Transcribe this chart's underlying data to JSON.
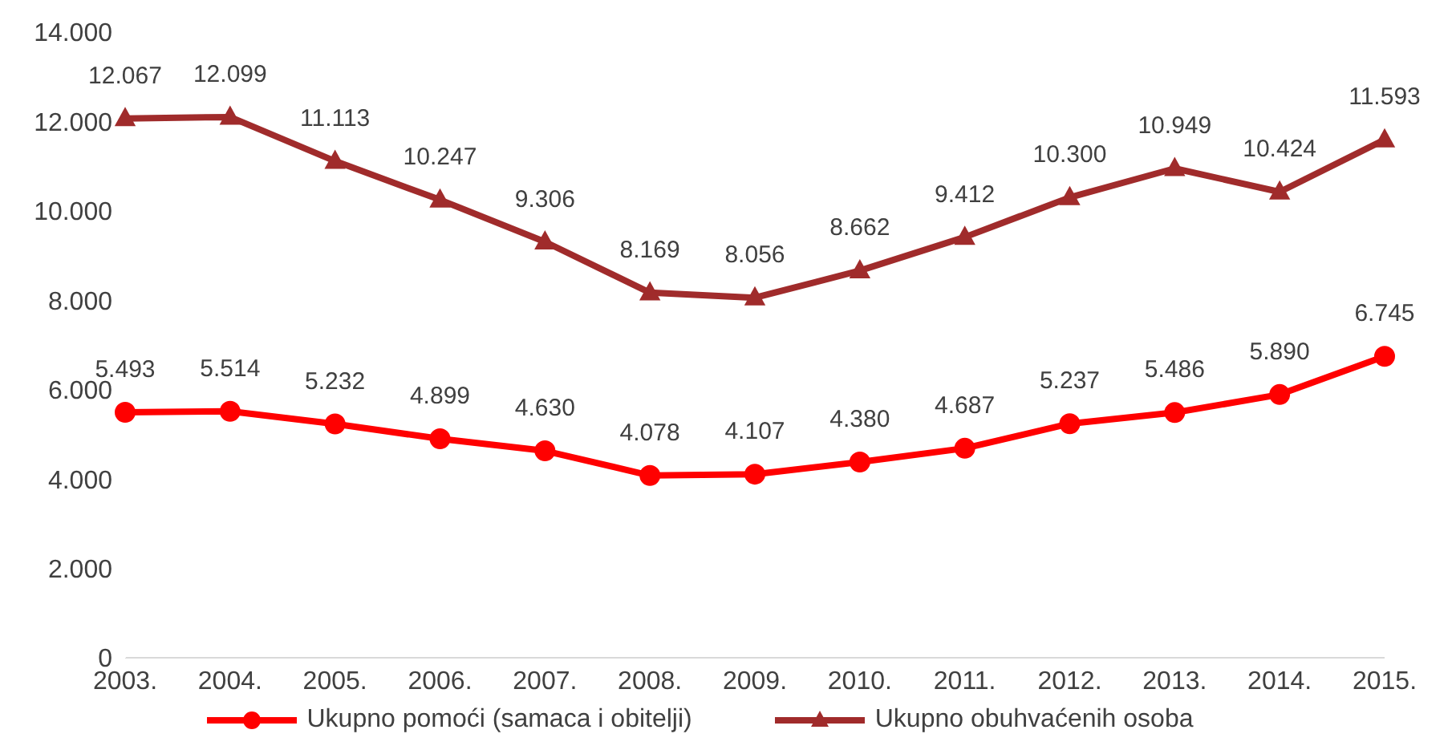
{
  "chart_data": {
    "type": "line",
    "categories": [
      "2003.",
      "2004.",
      "2005.",
      "2006.",
      "2007.",
      "2008.",
      "2009.",
      "2010.",
      "2011.",
      "2012.",
      "2013.",
      "2014.",
      "2015."
    ],
    "ylim": [
      0,
      14000
    ],
    "yticks": [
      0,
      {
        "value": 2000,
        "label": "2.000"
      },
      {
        "value": 4000,
        "label": "4.000"
      },
      {
        "value": 6000,
        "label": "6.000"
      },
      {
        "value": 8000,
        "label": "8.000"
      },
      {
        "value": 10000,
        "label": "10.000"
      },
      {
        "value": 12000,
        "label": "12.000"
      },
      {
        "value": 14000,
        "label": "14.000"
      }
    ],
    "grid": false,
    "legend": "bottom",
    "line_style": "solid",
    "series": [
      {
        "name": "Ukupno pomoći (samaca i obitelji)",
        "color": "#ff0000",
        "marker": "circle",
        "values": [
          5493,
          5514,
          5232,
          4899,
          4630,
          4078,
          4107,
          4380,
          4687,
          5237,
          5486,
          5890,
          6745
        ],
        "value_labels": [
          "5.493",
          "5.514",
          "5.232",
          "4.899",
          "4.630",
          "4.078",
          "4.107",
          "4.380",
          "4.687",
          "5.237",
          "5.486",
          "5.890",
          "6.745"
        ]
      },
      {
        "name": "Ukupno obuhvaćenih osoba",
        "color": "#a02b2b",
        "marker": "triangle",
        "values": [
          12067,
          12099,
          11113,
          10247,
          9306,
          8169,
          8056,
          8662,
          9412,
          10300,
          10949,
          10424,
          11593
        ],
        "value_labels": [
          "12.067",
          "12.099",
          "11.113",
          "10.247",
          "9.306",
          "8.169",
          "8.056",
          "8.662",
          "9.412",
          "10.300",
          "10.949",
          "10.424",
          "11.593"
        ]
      }
    ]
  }
}
